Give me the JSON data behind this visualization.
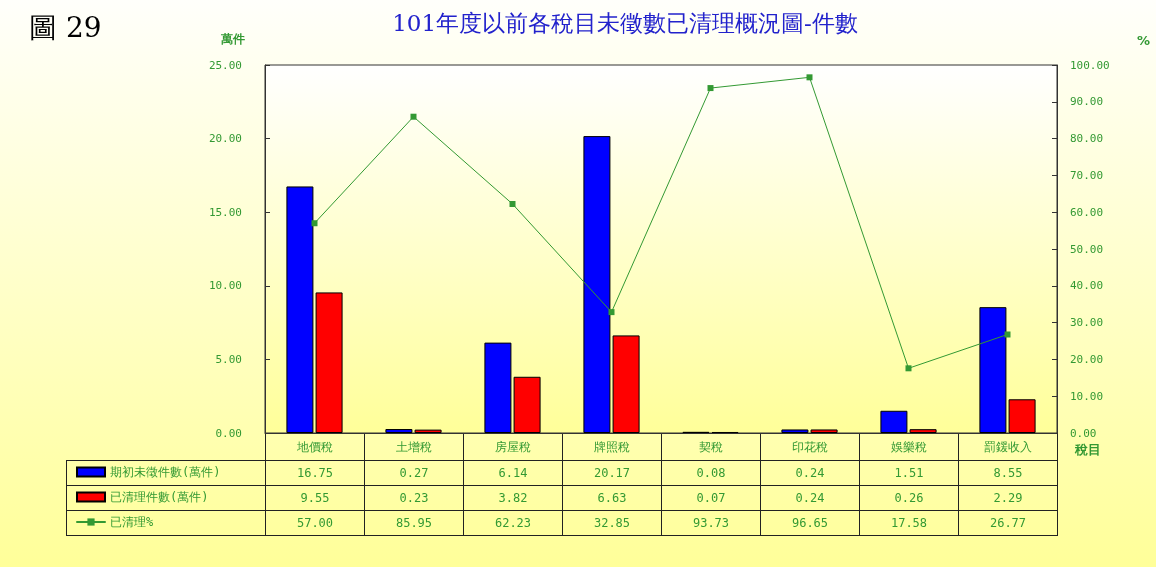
{
  "chart_data": {
    "type": "bar",
    "title": "101年度以前各稅目未徵數已清理概況圖-件數",
    "xlabel": "稅目",
    "ylabel": "萬件",
    "y2label": "%",
    "annotations": [
      "圖 29"
    ],
    "categories": [
      "地價稅",
      "土增稅",
      "房屋稅",
      "牌照稅",
      "契稅",
      "印花稅",
      "娛樂稅",
      "罰鍰收入"
    ],
    "series": [
      {
        "name": "期初未徵件數(萬件)",
        "color": "#0000ff",
        "values": [
          16.75,
          0.27,
          6.14,
          20.17,
          0.08,
          0.24,
          1.51,
          8.55
        ],
        "value_labels": [
          "16.75",
          "0.27",
          "6.14",
          "20.17",
          "0.08",
          "0.24",
          "1.51",
          "8.55"
        ]
      },
      {
        "name": "已清理件數(萬件)",
        "color": "#ff0000",
        "values": [
          9.55,
          0.23,
          3.82,
          6.63,
          0.07,
          0.24,
          0.26,
          2.29
        ],
        "value_labels": [
          "9.55",
          "0.23",
          "3.82",
          "6.63",
          "0.07",
          "0.24",
          "0.26",
          "2.29"
        ]
      },
      {
        "name": "已清理%",
        "type": "line",
        "axis": "y2",
        "color": "#339933",
        "values": [
          57.0,
          85.95,
          62.23,
          32.85,
          93.73,
          96.65,
          17.58,
          26.77
        ],
        "value_labels": [
          "57.00",
          "85.95",
          "62.23",
          "32.85",
          "93.73",
          "96.65",
          "17.58",
          "26.77"
        ]
      }
    ],
    "ylim": [
      0,
      25
    ],
    "yticks": [
      {
        "value": 0,
        "label": "0.00"
      },
      {
        "value": 5,
        "label": "5.00"
      },
      {
        "value": 10,
        "label": "10.00"
      },
      {
        "value": 15,
        "label": "15.00"
      },
      {
        "value": 20,
        "label": "20.00"
      },
      {
        "value": 25,
        "label": "25.00"
      }
    ],
    "y2lim": [
      0,
      100
    ],
    "y2ticks": [
      {
        "value": 0,
        "label": "0.00"
      },
      {
        "value": 10,
        "label": "10.00"
      },
      {
        "value": 20,
        "label": "20.00"
      },
      {
        "value": 30,
        "label": "30.00"
      },
      {
        "value": 40,
        "label": "40.00"
      },
      {
        "value": 50,
        "label": "50.00"
      },
      {
        "value": 60,
        "label": "60.00"
      },
      {
        "value": 70,
        "label": "70.00"
      },
      {
        "value": 80,
        "label": "80.00"
      },
      {
        "value": 90,
        "label": "90.00"
      },
      {
        "value": 100,
        "label": "100.00"
      }
    ],
    "marker": "square",
    "legend": "bottom left"
  }
}
